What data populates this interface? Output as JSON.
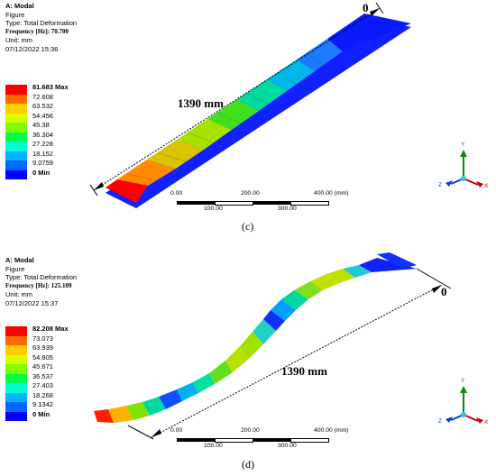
{
  "colors": [
    "#0000ff",
    "#0069ff",
    "#00b3ff",
    "#00ffd0",
    "#00ff48",
    "#7dff00",
    "#d6ff00",
    "#ffcc00",
    "#ff6a00",
    "#ff0000"
  ],
  "panels": [
    {
      "id": "c",
      "title": "A: Modal",
      "figure": "Figure",
      "type": "Type: Total Deformation",
      "frequency": "Frequency [Hz]: 70.700",
      "unit": "Unit: mm",
      "date": "07/12/2022 15:36",
      "legend": [
        "81.683 Max",
        "72.608",
        "63.532",
        "54.456",
        "45.38",
        "36.304",
        "27.228",
        "18.152",
        "9.0759",
        "0 Min"
      ],
      "dimension": "1390 mm",
      "zero": "0",
      "scale_ticks": {
        "t0": "0.00",
        "t1": "100.00",
        "t2": "200.00",
        "t3": "300.00",
        "t4": "400.00 (mm)"
      },
      "caption": "(c)"
    },
    {
      "id": "d",
      "title": "A: Modal",
      "figure": "Figure",
      "type": "Type: Total Deformation",
      "frequency": "Frequency [Hz]: 125.109",
      "unit": "Unit: mm",
      "date": "07/12/2022 15:37",
      "legend": [
        "82.208 Max",
        "73.073",
        "63.939",
        "54.805",
        "45.671",
        "36.537",
        "27.403",
        "18.268",
        "9.1342",
        "0 Min"
      ],
      "dimension": "1390 mm",
      "zero": "0",
      "scale_ticks": {
        "t0": "0.00",
        "t1": "100.00",
        "t2": "200.00",
        "t3": "300.00",
        "t4": "400.00 (mm)"
      },
      "caption": "(d)"
    }
  ],
  "axis_labels": {
    "x": "X",
    "y": "Y",
    "z": "Z"
  }
}
